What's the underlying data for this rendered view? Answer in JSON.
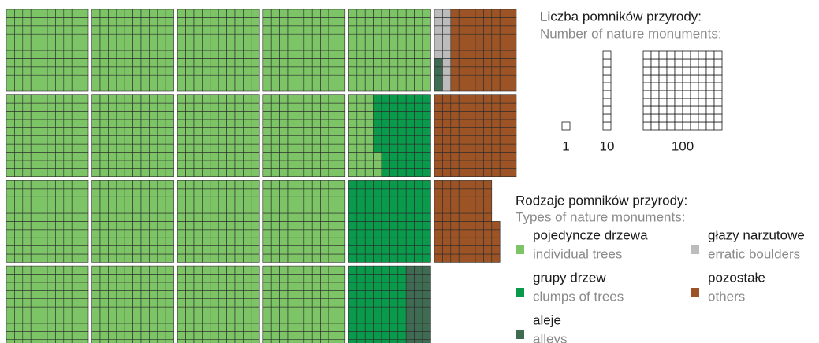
{
  "chart_data": {
    "type": "waffle",
    "title": "Liczba pomników przyrody:",
    "subtitle": "Number of nature monuments:",
    "scale": [
      1,
      10,
      100
    ],
    "legend_title": "Rodzaje pomników przyrody:",
    "legend_subtitle": "Types of nature monuments:",
    "series": [
      {
        "name": "pojedyncze drzewa",
        "name_en": "individual trees",
        "color": "#7cc466",
        "value": 1733
      },
      {
        "name": "grupy drzew",
        "name_en": "clumps of trees",
        "color": "#0a9a4c",
        "value": 237
      },
      {
        "name": "aleje",
        "name_en": "alleys",
        "color": "#3f6b52",
        "value": 34
      },
      {
        "name": "głazy narzutowe",
        "name_en": "erratic boulders",
        "color": "#bcbcbc",
        "value": 16
      },
      {
        "name": "pozostałe",
        "name_en": "others",
        "color": "#9c5426",
        "value": 255
      }
    ]
  }
}
